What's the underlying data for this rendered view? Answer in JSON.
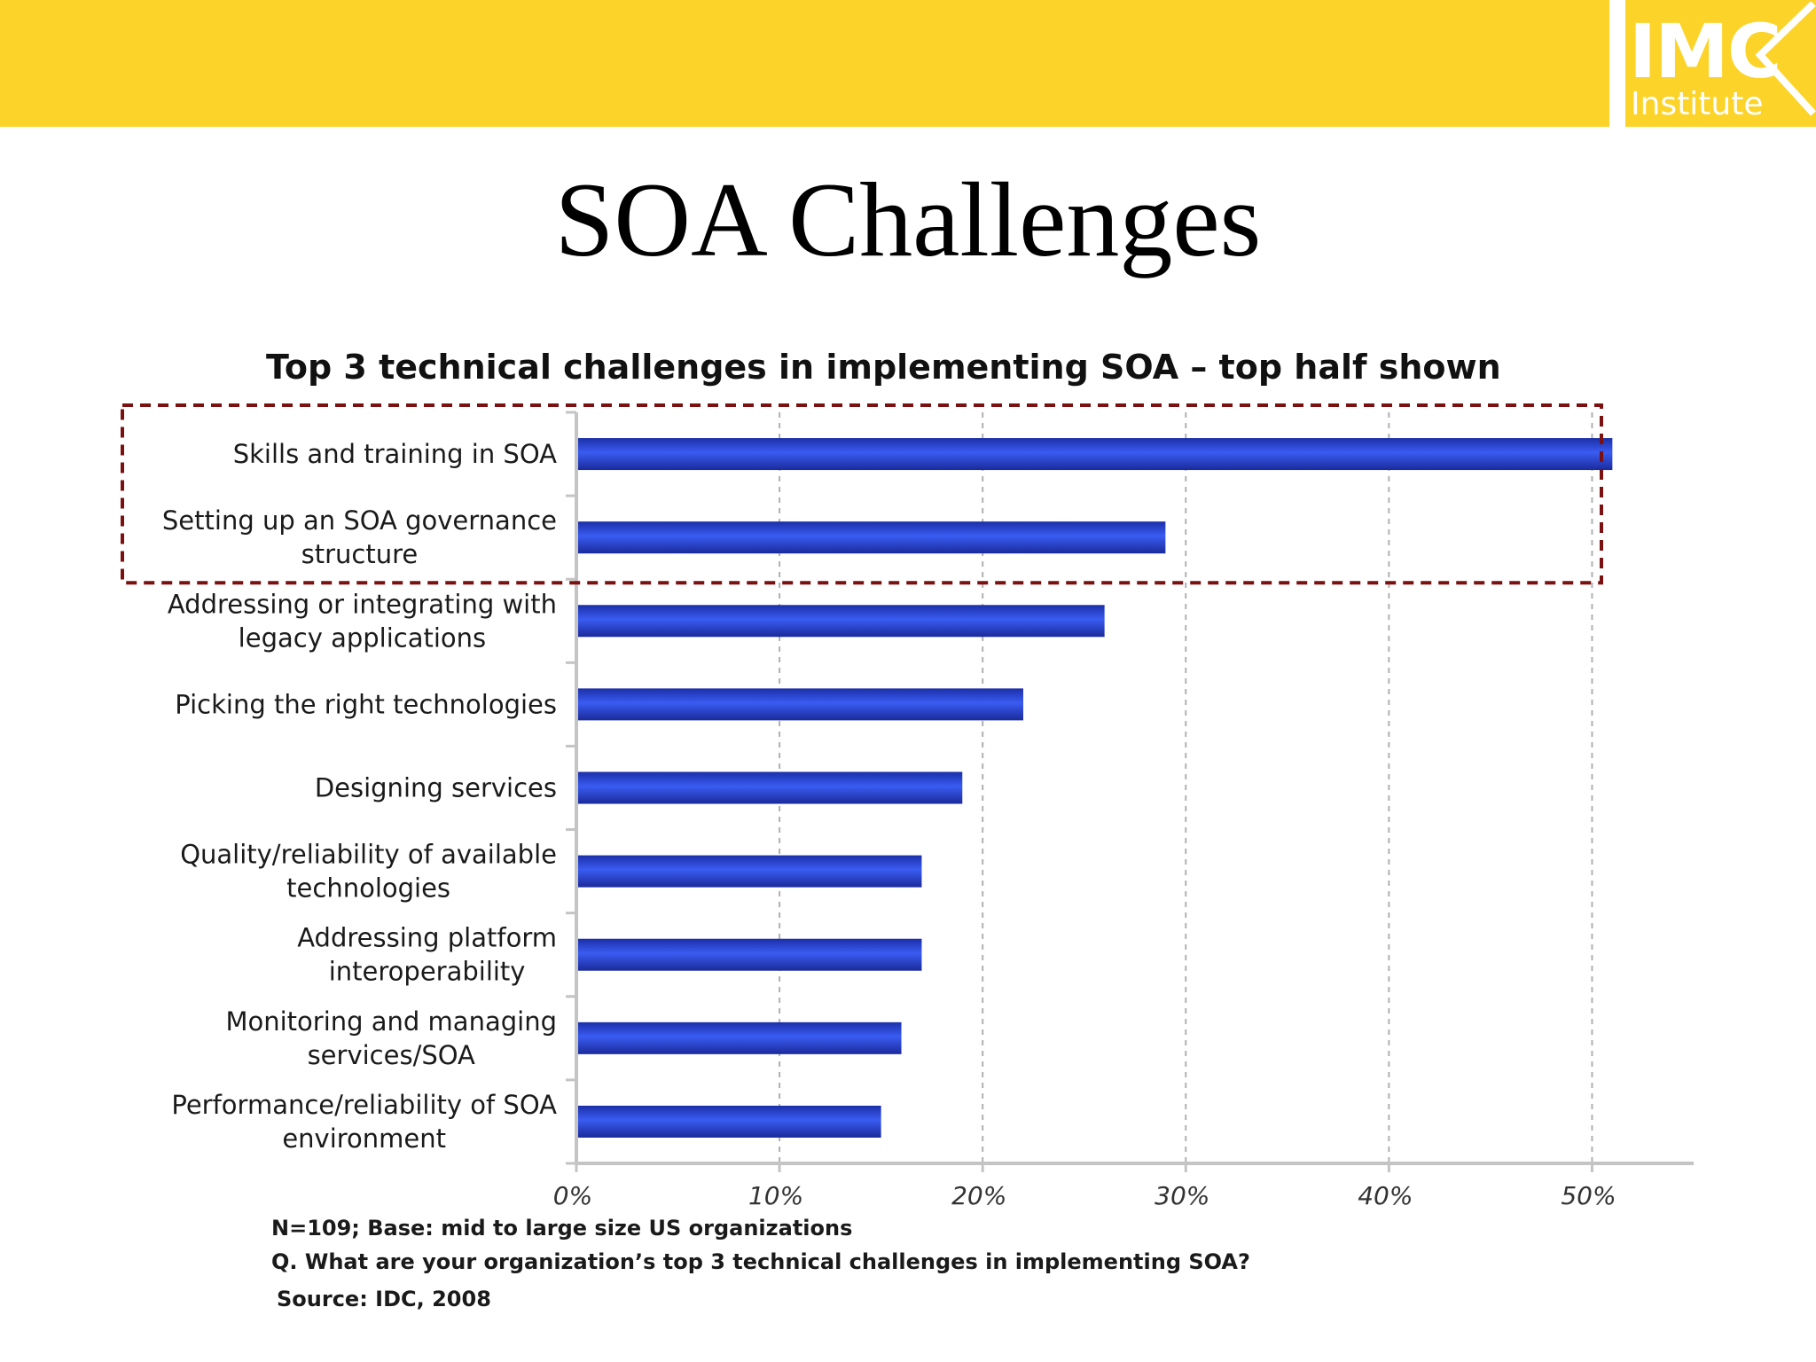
{
  "header": {
    "logo_main": "IMC",
    "logo_sub": "Institute",
    "band_color": "#fcd328"
  },
  "slide_title": "SOA Challenges",
  "chart_data": {
    "type": "bar",
    "orientation": "horizontal",
    "title": "Top 3  technical challenges in implementing SOA – top half shown",
    "categories": [
      [
        "Skills and training in SOA"
      ],
      [
        "Setting up an SOA governance",
        "structure"
      ],
      [
        "Addressing or integrating with",
        "legacy applications"
      ],
      [
        "Picking the right technologies"
      ],
      [
        "Designing services"
      ],
      [
        "Quality/reliability of available",
        "technologies"
      ],
      [
        "Addressing platform",
        "interoperability"
      ],
      [
        "Monitoring and managing",
        "services/SOA"
      ],
      [
        "Performance/reliability of SOA",
        "environment"
      ]
    ],
    "values": [
      51,
      29,
      26,
      22,
      19,
      17,
      17,
      16,
      15
    ],
    "xlim": [
      0,
      55
    ],
    "x_ticks": [
      0,
      10,
      20,
      30,
      40,
      50
    ],
    "x_tick_labels": [
      "0%",
      "10%",
      "20%",
      "30%",
      "40%",
      "50%"
    ],
    "grid": "vertical-dashed",
    "bar_color": "#2f4fe0",
    "highlight": {
      "categories_index": [
        0,
        1
      ],
      "style": "dashed-box",
      "color": "#7a1010"
    }
  },
  "footnotes": {
    "base": "N=109; Base: mid to large size US organizations",
    "question": "Q. What are your organization’s top 3  technical challenges in implementing SOA?",
    "source": "Source: IDC, 2008"
  }
}
